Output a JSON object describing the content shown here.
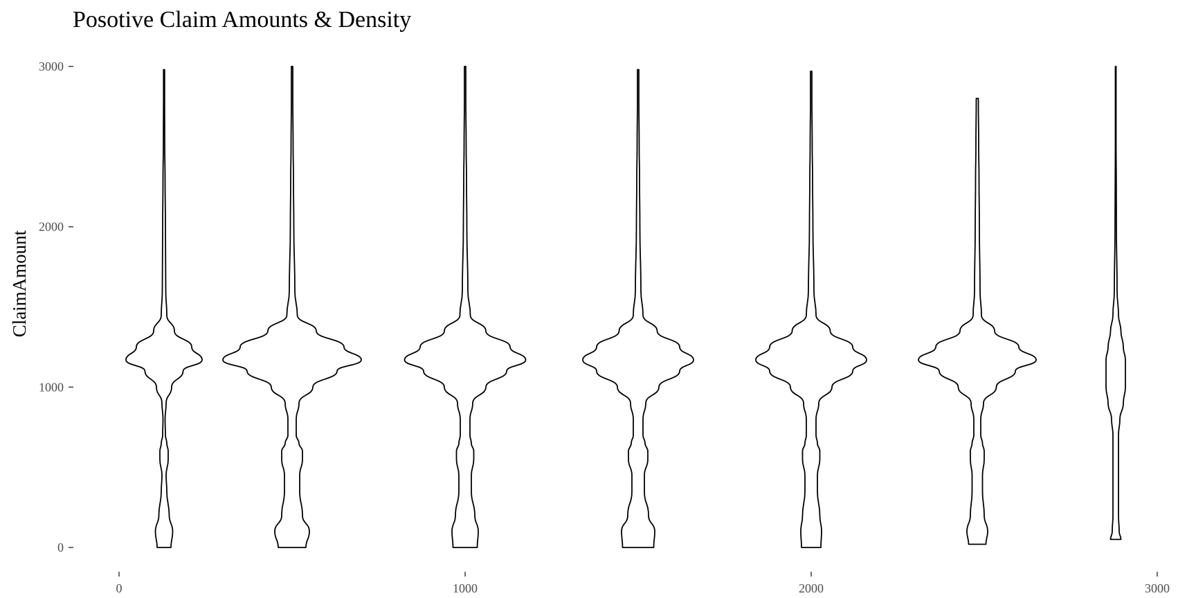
{
  "chart_data": {
    "type": "violin",
    "title": "Posotive Claim Amounts & Density",
    "xlabel": "",
    "ylabel": "ClaimAmount",
    "xlim": [
      0,
      3000
    ],
    "ylim": [
      0,
      3000
    ],
    "x_ticks": [
      "0",
      "1000",
      "2000",
      "3000"
    ],
    "y_ticks": [
      "0",
      "1000",
      "2000",
      "3000"
    ],
    "grid": false,
    "legend": "none",
    "density_levels": [
      0,
      100,
      200,
      350,
      450,
      550,
      600,
      650,
      700,
      800,
      900,
      1000,
      1100,
      1170,
      1250,
      1350,
      1450,
      1600,
      2000,
      2300,
      2500,
      2800,
      3000
    ],
    "violins": [
      {
        "x": 130,
        "y_min": 0,
        "y_max": 2980,
        "half_widths": [
          20,
          25,
          15,
          8,
          6,
          12,
          12,
          8,
          4,
          3,
          6,
          22,
          55,
          110,
          80,
          30,
          8,
          5,
          4,
          3,
          2,
          1.5,
          1.5
        ]
      },
      {
        "x": 500,
        "y_min": 0,
        "y_max": 3000,
        "half_widths": [
          40,
          50,
          30,
          22,
          22,
          30,
          30,
          20,
          12,
          12,
          20,
          60,
          130,
          200,
          150,
          70,
          15,
          8,
          5,
          4,
          3,
          2,
          2
        ]
      },
      {
        "x": 1000,
        "y_min": 0,
        "y_max": 3000,
        "half_widths": [
          35,
          38,
          28,
          18,
          18,
          25,
          25,
          18,
          14,
          14,
          22,
          60,
          120,
          175,
          130,
          60,
          15,
          8,
          5,
          4,
          3,
          2,
          2
        ]
      },
      {
        "x": 1500,
        "y_min": 0,
        "y_max": 2980,
        "half_widths": [
          45,
          48,
          30,
          18,
          18,
          28,
          28,
          20,
          14,
          14,
          22,
          60,
          120,
          160,
          120,
          55,
          14,
          8,
          5,
          4,
          3,
          2,
          2
        ]
      },
      {
        "x": 2000,
        "y_min": 0,
        "y_max": 2970,
        "half_widths": [
          28,
          30,
          25,
          18,
          18,
          25,
          25,
          18,
          14,
          14,
          22,
          60,
          120,
          160,
          120,
          55,
          14,
          8,
          5,
          4,
          3,
          2,
          2
        ]
      },
      {
        "x": 2480,
        "y_min": 20,
        "y_max": 2800,
        "half_widths": [
          25,
          30,
          20,
          15,
          15,
          20,
          20,
          15,
          10,
          10,
          18,
          55,
          110,
          170,
          120,
          50,
          12,
          8,
          6,
          5,
          4,
          3,
          3
        ]
      },
      {
        "x": 2880,
        "y_min": 50,
        "y_max": 3000,
        "half_widths": [
          15,
          10,
          8,
          8,
          8,
          8,
          8,
          8,
          8,
          12,
          22,
          28,
          28,
          28,
          22,
          15,
          8,
          4,
          2,
          1.5,
          1,
          1,
          1
        ]
      }
    ]
  }
}
